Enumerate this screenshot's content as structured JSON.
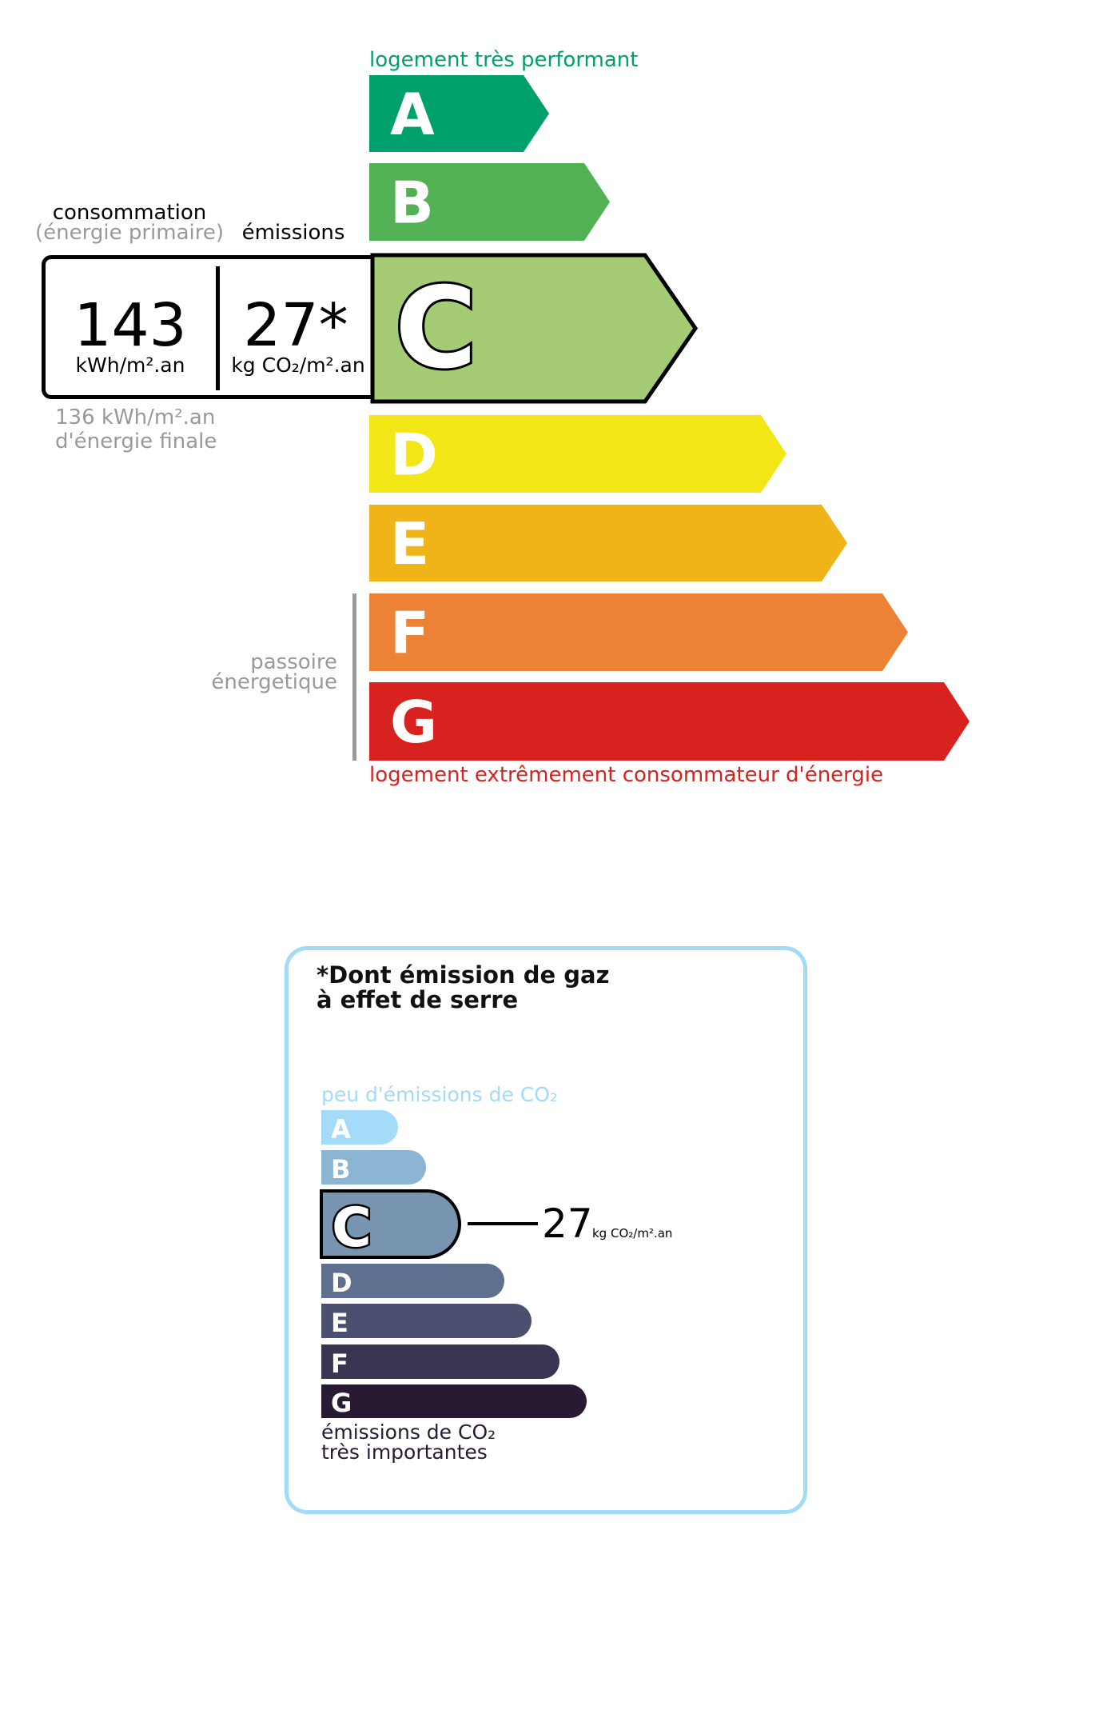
{
  "chart_data": {
    "type": "bar",
    "energy_label": {
      "top_label": "logement très performant",
      "bottom_label": "logement extrêmement consommateur d'énergie",
      "passoire_label_1": "passoire",
      "passoire_label_2": "énergetique",
      "classes": [
        {
          "letter": "A",
          "color": "#00a06d"
        },
        {
          "letter": "B",
          "color": "#52b153"
        },
        {
          "letter": "C",
          "color": "#a5cc74"
        },
        {
          "letter": "D",
          "color": "#f2e617"
        },
        {
          "letter": "E",
          "color": "#f0b418"
        },
        {
          "letter": "F",
          "color": "#eb8235"
        },
        {
          "letter": "G",
          "color": "#d7221f"
        }
      ],
      "selected_class": "C",
      "consumption_header": "consommation",
      "consumption_subheader": "(énergie primaire)",
      "emissions_header": "émissions",
      "consumption_value": "143",
      "consumption_unit": "kWh/m².an",
      "emissions_value": "27*",
      "emissions_unit": "kg CO₂/m².an",
      "final_energy_line1": "136 kWh/m².an",
      "final_energy_line2": "d'énergie finale"
    },
    "ges_label": {
      "title_line1": "*Dont émission de gaz",
      "title_line2": "à effet de serre",
      "top_label": "peu d'émissions de CO₂",
      "bottom_label_1": "émissions de CO₂",
      "bottom_label_2": "très importantes",
      "border_color": "#a3daf5",
      "classes": [
        {
          "letter": "A",
          "color": "#a4dbf8"
        },
        {
          "letter": "B",
          "color": "#8cb4d3"
        },
        {
          "letter": "C",
          "color": "#7794b1"
        },
        {
          "letter": "D",
          "color": "#5f6f8f"
        },
        {
          "letter": "E",
          "color": "#4b5070"
        },
        {
          "letter": "F",
          "color": "#393654"
        },
        {
          "letter": "G",
          "color": "#291a34"
        }
      ],
      "selected_class": "C",
      "value": "27",
      "unit": "kg CO₂/m².an"
    }
  }
}
